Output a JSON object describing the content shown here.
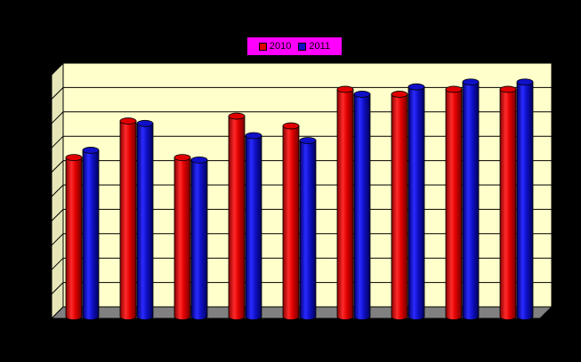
{
  "chart_data": {
    "type": "bar",
    "categories": [
      "",
      "",
      "",
      "",
      "",
      "",
      "",
      "",
      ""
    ],
    "series": [
      {
        "name": "2010",
        "color": "#e00000",
        "values": [
          6.6,
          8.1,
          6.6,
          8.3,
          7.9,
          9.4,
          9.2,
          9.4,
          9.4
        ]
      },
      {
        "name": "2011",
        "color": "#1010c8",
        "values": [
          6.9,
          8.0,
          6.5,
          7.5,
          7.3,
          9.2,
          9.5,
          9.7,
          9.7
        ]
      }
    ],
    "ylim": [
      0,
      10
    ],
    "gridlines": 10,
    "grid": true,
    "legend": "top",
    "plot_background": "#ffffcc",
    "floor_color": "#808080"
  }
}
